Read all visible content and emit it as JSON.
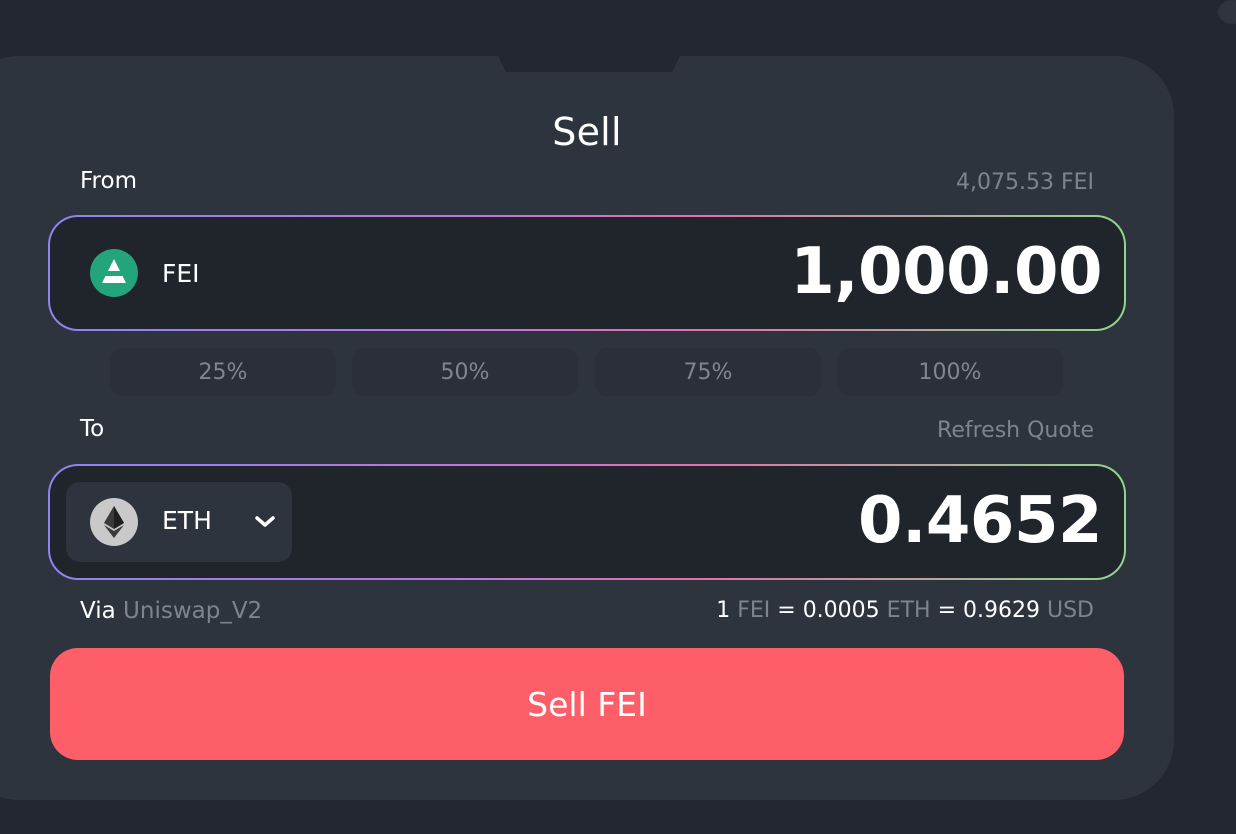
{
  "title": "Sell",
  "from": {
    "label": "From",
    "balance": "4,075.53 FEI",
    "token": "FEI",
    "amount": "1,000.00"
  },
  "percent_buttons": [
    "25%",
    "50%",
    "75%",
    "100%"
  ],
  "to": {
    "label": "To",
    "refresh_label": "Refresh Quote",
    "token": "ETH",
    "amount": "0.4652"
  },
  "route": {
    "via_label": "Via",
    "via_value": "Uniswap_V2"
  },
  "rate": {
    "lhs_amount": "1",
    "lhs_unit": "FEI",
    "eq1": "=",
    "eth_amount": "0.0005",
    "eth_unit": "ETH",
    "eq2": "=",
    "usd_amount": "0.9629",
    "usd_unit": "USD"
  },
  "action": {
    "sell_label": "Sell FEI"
  },
  "colors": {
    "background": "#23272f",
    "panel": "#2e343d",
    "input": "#20242b",
    "accent_button": "#fe5e68",
    "fei_icon": "#23a47a",
    "muted_text": "#7d8490"
  }
}
